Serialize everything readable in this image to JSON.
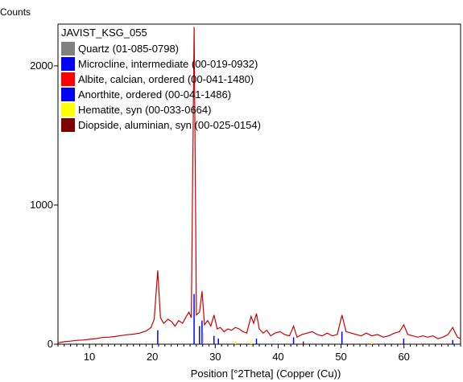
{
  "chart_data": {
    "type": "line",
    "title": "JAVIST_KSG_055",
    "ylabel": "Counts",
    "xlabel": "Position [°2Theta] (Copper (Cu))",
    "xlim": [
      5,
      69
    ],
    "ylim": [
      0,
      2300
    ],
    "x_ticks": [
      10,
      20,
      30,
      40,
      50,
      60
    ],
    "y_ticks": [
      0,
      1000,
      2000
    ],
    "grid": false,
    "legend_position": "top-left",
    "legend": [
      {
        "name": "Quartz (01-085-0798)",
        "color": "#808080"
      },
      {
        "name": "Microcline, intermediate (00-019-0932)",
        "color": "#0000ff"
      },
      {
        "name": "Albite, calcian, ordered (00-041-1480)",
        "color": "#ff0000"
      },
      {
        "name": "Anorthite, ordered (00-041-1486)",
        "color": "#0000ff"
      },
      {
        "name": "Hematite, syn (00-033-0664)",
        "color": "#ffff00"
      },
      {
        "name": "Diopside, aluminian, syn (00-025-0154)",
        "color": "#800000"
      }
    ],
    "series": [
      {
        "color": "#cc0000",
        "x": [
          5,
          6,
          7,
          8,
          9,
          10,
          11,
          12,
          13,
          14,
          15,
          16,
          17,
          18,
          19,
          19.8,
          20.3,
          20.86,
          21.3,
          21.8,
          22.5,
          23.1,
          23.6,
          24.2,
          24.8,
          25.4,
          25.8,
          26.2,
          26.64,
          27.0,
          27.5,
          27.9,
          28.3,
          28.8,
          29.3,
          29.8,
          30.3,
          30.8,
          31.4,
          32.0,
          32.6,
          33.2,
          33.8,
          34.4,
          35.0,
          35.7,
          36.1,
          36.55,
          37.0,
          37.6,
          38.2,
          38.8,
          39.5,
          40.3,
          41.0,
          41.8,
          42.45,
          43.0,
          43.8,
          44.6,
          45.4,
          46.2,
          47.0,
          47.8,
          48.6,
          49.4,
          50.14,
          50.8,
          51.6,
          52.4,
          53.2,
          54.0,
          54.9,
          55.8,
          56.7,
          57.6,
          58.5,
          59.3,
          59.96,
          60.6,
          61.4,
          62.2,
          63.0,
          63.8,
          64.6,
          65.4,
          66.2,
          67.0,
          67.75,
          68.5,
          69
        ],
        "y": [
          10,
          18,
          22,
          28,
          30,
          35,
          40,
          48,
          50,
          55,
          62,
          68,
          72,
          80,
          95,
          120,
          180,
          530,
          190,
          150,
          180,
          160,
          130,
          170,
          150,
          200,
          230,
          190,
          2280,
          210,
          230,
          380,
          140,
          170,
          130,
          210,
          110,
          120,
          90,
          110,
          100,
          120,
          110,
          90,
          80,
          200,
          150,
          220,
          110,
          80,
          100,
          60,
          80,
          90,
          70,
          60,
          130,
          50,
          70,
          80,
          90,
          70,
          60,
          80,
          60,
          70,
          210,
          90,
          80,
          70,
          60,
          80,
          60,
          70,
          50,
          60,
          80,
          90,
          140,
          70,
          60,
          50,
          60,
          50,
          60,
          40,
          50,
          70,
          120,
          50,
          40
        ]
      }
    ]
  }
}
